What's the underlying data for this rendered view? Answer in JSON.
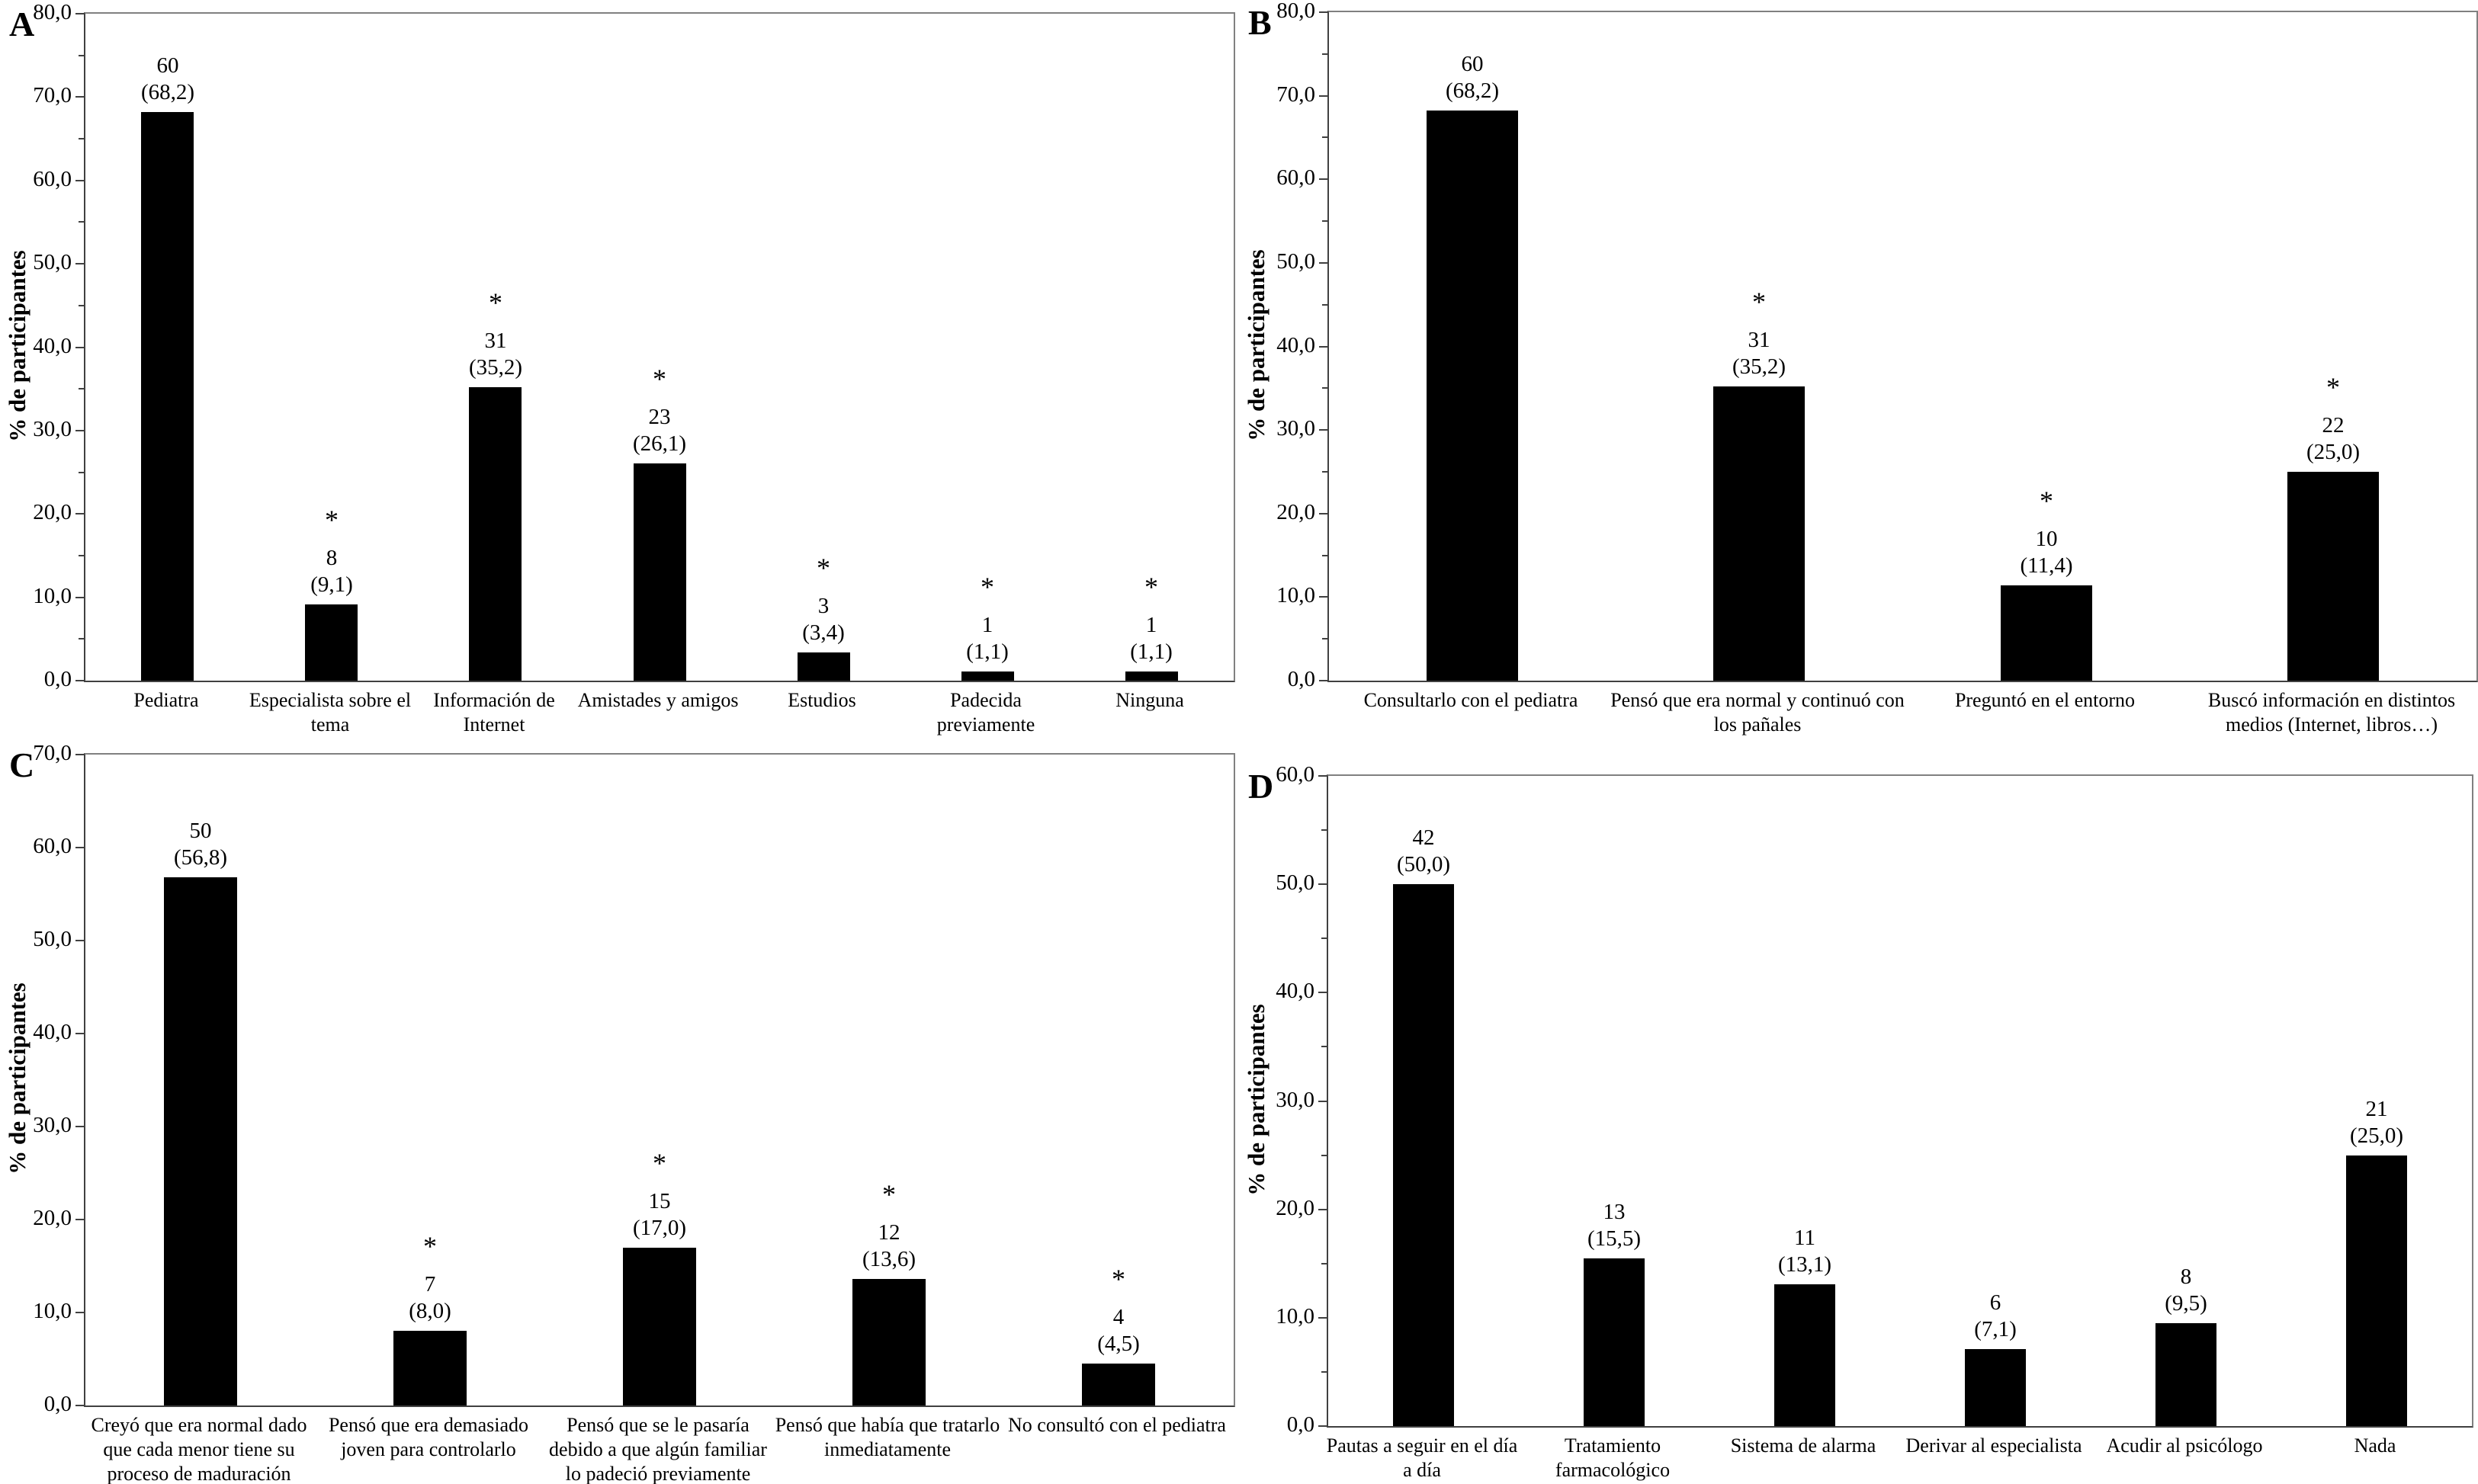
{
  "figure": {
    "background": "#ffffff",
    "y_axis_title": "% de participantes",
    "significance_marker": "*"
  },
  "chart_data": [
    {
      "type": "bar",
      "panel": "A",
      "ylabel": "% de participantes",
      "ylim": [
        0,
        80
      ],
      "ytick_major": 10,
      "ytick_minor": 5,
      "bar_color": "#000000",
      "axis_color": "#404040",
      "border_color": "#808080",
      "categories": [
        "Pediatra",
        "Especialista sobre el\ntema",
        "Información de\nInternet",
        "Amistades y amigos",
        "Estudios",
        "Padecida\npreviamente",
        "Ninguna"
      ],
      "values": [
        68.2,
        9.1,
        35.2,
        26.1,
        3.4,
        1.1,
        1.1
      ],
      "counts": [
        60,
        8,
        31,
        23,
        3,
        1,
        1
      ],
      "percent_labels": [
        "(68,2)",
        "(9,1)",
        "(35,2)",
        "(26,1)",
        "(3,4)",
        "(1,1)",
        "(1,1)"
      ],
      "significant": [
        false,
        true,
        true,
        true,
        true,
        true,
        true
      ]
    },
    {
      "type": "bar",
      "panel": "B",
      "ylabel": "% de participantes",
      "ylim": [
        0,
        80
      ],
      "ytick_major": 10,
      "ytick_minor": 5,
      "bar_color": "#000000",
      "axis_color": "#404040",
      "border_color": "#808080",
      "categories": [
        "Consultarlo con el pediatra",
        "Pensó que era normal y continuó con\nlos pañales",
        "Preguntó en el entorno",
        "Buscó información en distintos\nmedios (Internet, libros…)"
      ],
      "values": [
        68.2,
        35.2,
        11.4,
        25.0
      ],
      "counts": [
        60,
        31,
        10,
        22
      ],
      "percent_labels": [
        "(68,2)",
        "(35,2)",
        "(11,4)",
        "(25,0)"
      ],
      "significant": [
        false,
        true,
        true,
        true
      ]
    },
    {
      "type": "bar",
      "panel": "C",
      "ylabel": "% de participantes",
      "ylim": [
        0,
        70
      ],
      "ytick_major": 10,
      "ytick_minor": null,
      "bar_color": "#000000",
      "axis_color": "#404040",
      "border_color": "#808080",
      "categories": [
        "Creyó que era normal dado\nque cada menor tiene su\nproceso de maduración",
        "Pensó que era demasiado\njoven para controlarlo",
        "Pensó que se le pasaría\ndebido a que algún familiar\nlo padeció previamente",
        "Pensó que había que tratarlo\ninmediatamente",
        "No consultó con el pediatra"
      ],
      "values": [
        56.8,
        8.0,
        17.0,
        13.6,
        4.5
      ],
      "counts": [
        50,
        7,
        15,
        12,
        4
      ],
      "percent_labels": [
        "(56,8)",
        "(8,0)",
        "(17,0)",
        "(13,6)",
        "(4,5)"
      ],
      "significant": [
        false,
        true,
        true,
        true,
        true
      ]
    },
    {
      "type": "bar",
      "panel": "D",
      "ylabel": "% de participantes",
      "ylim": [
        0,
        60
      ],
      "ytick_major": 10,
      "ytick_minor": 5,
      "bar_color": "#000000",
      "axis_color": "#404040",
      "border_color": "#808080",
      "categories": [
        "Pautas a seguir en el día\na día",
        "Tratamiento\nfarmacológico",
        "Sistema de alarma",
        "Derivar al especialista",
        "Acudir al psicólogo",
        "Nada"
      ],
      "values": [
        50.0,
        15.5,
        13.1,
        7.1,
        9.5,
        25.0
      ],
      "counts": [
        42,
        13,
        11,
        6,
        8,
        21
      ],
      "percent_labels": [
        "(50,0)",
        "(15,5)",
        "(13,1)",
        "(7,1)",
        "(9,5)",
        "(25,0)"
      ],
      "significant": [
        false,
        false,
        false,
        false,
        false,
        false
      ]
    }
  ]
}
